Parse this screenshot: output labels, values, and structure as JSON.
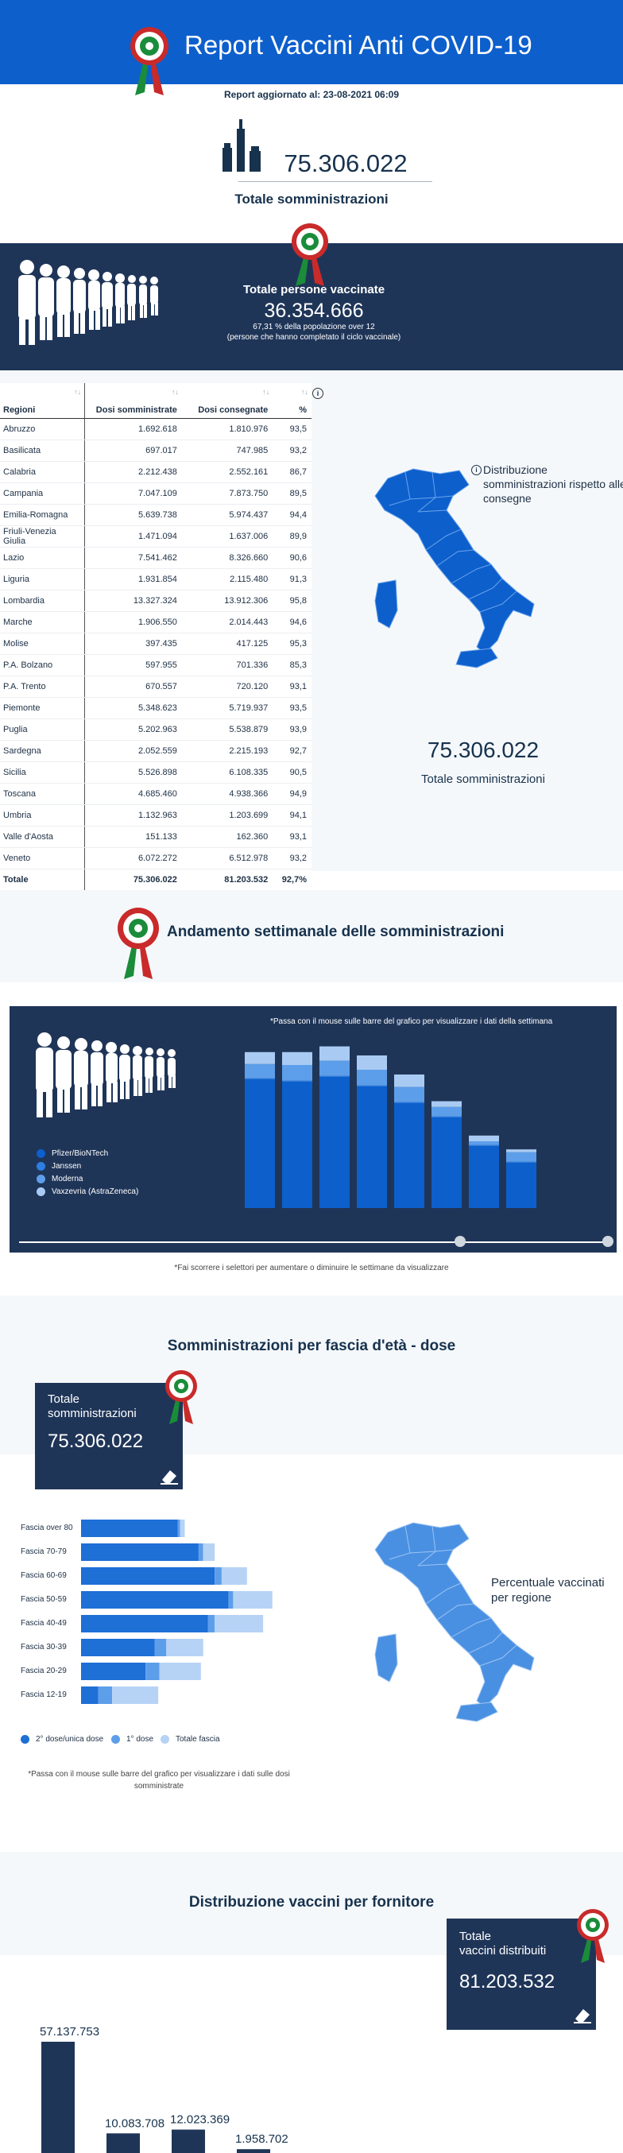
{
  "header": {
    "title": "Report Vaccini Anti COVID-19",
    "updated": "Report aggiornato al: 23-08-2021 06:09"
  },
  "totals": {
    "administrations": "75.306.022",
    "administrations_label": "Totale somministrazioni"
  },
  "vaccinated": {
    "title": "Totale persone vaccinate",
    "count": "36.354.666",
    "pct": "67,31 % della popolazione over 12",
    "note": "(persone che hanno completato il ciclo vaccinale)"
  },
  "regions_table": {
    "headers": [
      "Regioni",
      "Dosi somministrate",
      "Dosi consegnate",
      "%"
    ],
    "rows": [
      [
        "Abruzzo",
        "1.692.618",
        "1.810.976",
        "93,5"
      ],
      [
        "Basilicata",
        "697.017",
        "747.985",
        "93,2"
      ],
      [
        "Calabria",
        "2.212.438",
        "2.552.161",
        "86,7"
      ],
      [
        "Campania",
        "7.047.109",
        "7.873.750",
        "89,5"
      ],
      [
        "Emilia-Romagna",
        "5.639.738",
        "5.974.437",
        "94,4"
      ],
      [
        "Friuli-Venezia Giulia",
        "1.471.094",
        "1.637.006",
        "89,9"
      ],
      [
        "Lazio",
        "7.541.462",
        "8.326.660",
        "90,6"
      ],
      [
        "Liguria",
        "1.931.854",
        "2.115.480",
        "91,3"
      ],
      [
        "Lombardia",
        "13.327.324",
        "13.912.306",
        "95,8"
      ],
      [
        "Marche",
        "1.906.550",
        "2.014.443",
        "94,6"
      ],
      [
        "Molise",
        "397.435",
        "417.125",
        "95,3"
      ],
      [
        "P.A. Bolzano",
        "597.955",
        "701.336",
        "85,3"
      ],
      [
        "P.A. Trento",
        "670.557",
        "720.120",
        "93,1"
      ],
      [
        "Piemonte",
        "5.348.623",
        "5.719.937",
        "93,5"
      ],
      [
        "Puglia",
        "5.202.963",
        "5.538.879",
        "93,9"
      ],
      [
        "Sardegna",
        "2.052.559",
        "2.215.193",
        "92,7"
      ],
      [
        "Sicilia",
        "5.526.898",
        "6.108.335",
        "90,5"
      ],
      [
        "Toscana",
        "4.685.460",
        "4.938.366",
        "94,9"
      ],
      [
        "Umbria",
        "1.132.963",
        "1.203.699",
        "94,1"
      ],
      [
        "Valle d'Aosta",
        "151.133",
        "162.360",
        "93,1"
      ],
      [
        "Veneto",
        "6.072.272",
        "6.512.978",
        "93,2"
      ]
    ],
    "total": [
      "Totale",
      "75.306.022",
      "81.203.532",
      "92,7%"
    ]
  },
  "region_map": {
    "legend": "Distribuzione somministrazioni rispetto alle consegne",
    "total": "75.306.022",
    "total_label": "Totale somministrazioni"
  },
  "weekly": {
    "title": "Andamento settimanale delle somministrazioni",
    "hint": "*Passa con il mouse sulle barre del grafico per visualizzare i dati della settimana",
    "legend": [
      "Pfizer/BioNTech",
      "Janssen",
      "Moderna",
      "Vaxzevria (AstraZeneca)"
    ],
    "slider_note": "*Fai scorrere i selettori per aumentare o diminuire le settimane da visualizzare"
  },
  "age": {
    "title": "Somministrazioni per fascia d'età - dose",
    "total_l1": "Totale",
    "total_l2": "somministrazioni",
    "total_value": "75.306.022",
    "legend": [
      "2° dose/unica dose",
      "1° dose",
      "Totale fascia"
    ],
    "note": "*Passa con il mouse sulle barre del grafico per visualizzare i dati sulle dosi somministrate",
    "map_label": "Percentuale vaccinati per regione"
  },
  "supplier": {
    "title": "Distribuzione vaccini per fornitore",
    "box_l1": "Totale",
    "box_l2": "vaccini distribuiti",
    "box_value": "81.203.532"
  },
  "colors": {
    "primary": "#0d5fcc",
    "navy": "#1f3558",
    "dose2": "#1e6fd6",
    "dose1": "#5d9eea",
    "total": "#b6d3f5"
  },
  "chart_data": [
    {
      "type": "bar",
      "stacked": true,
      "categories": [
        "",
        "",
        "",
        "",
        "",
        "",
        "",
        "",
        ""
      ],
      "series": [
        {
          "name": "Pfizer/BioNTech",
          "values": [
            2.7,
            2.65,
            2.75,
            2.55,
            2.2,
            1.9,
            1.3,
            0.95,
            0
          ]
        },
        {
          "name": "Janssen",
          "values": [
            0.02,
            0.02,
            0.02,
            0.02,
            0.02,
            0.02,
            0.02,
            0.02,
            0
          ]
        },
        {
          "name": "Moderna",
          "values": [
            0.3,
            0.33,
            0.32,
            0.33,
            0.32,
            0.2,
            0.08,
            0.2,
            0
          ]
        },
        {
          "name": "Vaxzevria (AstraZeneca)",
          "values": [
            0.25,
            0.27,
            0.3,
            0.3,
            0.26,
            0.12,
            0.12,
            0.06,
            0
          ]
        }
      ]
    },
    {
      "type": "bar",
      "orientation": "horizontal",
      "stacked": true,
      "categories": [
        "Fascia over 80",
        "Fascia 70-79",
        "Fascia 60-69",
        "Fascia 50-59",
        "Fascia 40-49",
        "Fascia 30-39",
        "Fascia 20-29",
        "Fascia 12-19"
      ],
      "series": [
        {
          "name": "2° dose/unica dose",
          "values": [
            4.2,
            5.1,
            5.8,
            6.4,
            5.5,
            3.2,
            2.8,
            0.75
          ]
        },
        {
          "name": "1° dose",
          "values": [
            0.1,
            0.2,
            0.3,
            0.2,
            0.3,
            0.5,
            0.6,
            0.6
          ]
        },
        {
          "name": "Totale fascia",
          "values": [
            0.2,
            0.5,
            1.1,
            1.7,
            2.1,
            1.6,
            1.8,
            2.0
          ]
        }
      ]
    },
    {
      "type": "bar",
      "categories": [
        "",
        "",
        "",
        ""
      ],
      "values": [
        57137753,
        10083708,
        12023369,
        1958702
      ],
      "labels": [
        "57.137.753",
        "10.083.708",
        "12.023.369",
        "1.958.702"
      ]
    }
  ]
}
